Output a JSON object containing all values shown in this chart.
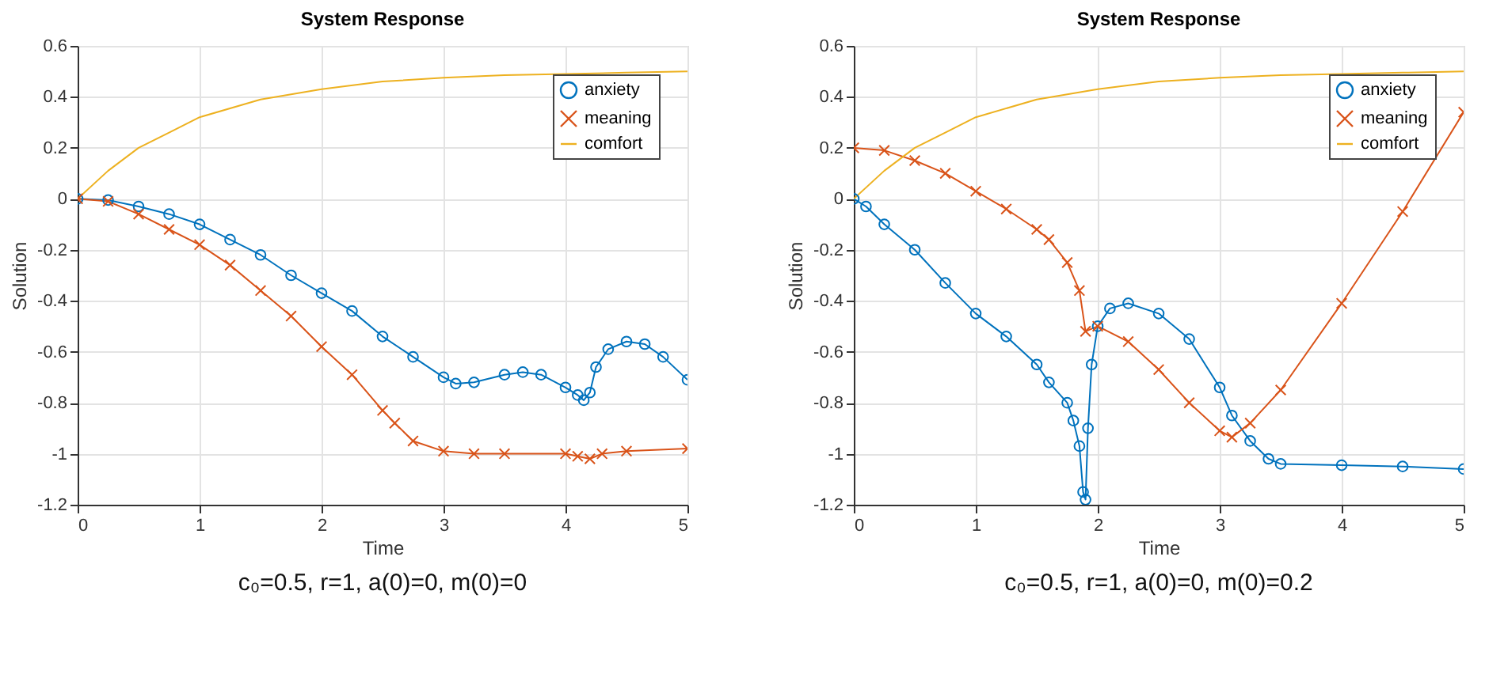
{
  "chart_data": [
    {
      "type": "line",
      "title": "System Response",
      "xlabel": "Time",
      "ylabel": "Solution",
      "xlim": [
        0,
        5
      ],
      "ylim": [
        -1.2,
        0.6
      ],
      "xticks": [
        0,
        1,
        2,
        3,
        4,
        5
      ],
      "yticks": [
        -1.2,
        -1,
        -0.8,
        -0.6,
        -0.4,
        -0.2,
        0,
        0.2,
        0.4,
        0.6
      ],
      "grid": true,
      "legend": "top right",
      "line_style": "solid",
      "annotations": [
        "c₀=0.5, r=1, a(0)=0, m(0)=0"
      ],
      "series": [
        {
          "name": "anxiety",
          "color": "#0072bd",
          "marker": "circle",
          "x": [
            0,
            0.25,
            0.5,
            0.75,
            1,
            1.25,
            1.5,
            1.75,
            2,
            2.25,
            2.5,
            2.75,
            3,
            3.1,
            3.25,
            3.5,
            3.65,
            3.8,
            4,
            4.1,
            4.15,
            4.2,
            4.25,
            4.35,
            4.5,
            4.65,
            4.8,
            5
          ],
          "values": [
            0,
            -0.005,
            -0.03,
            -0.06,
            -0.1,
            -0.16,
            -0.22,
            -0.3,
            -0.37,
            -0.44,
            -0.54,
            -0.62,
            -0.7,
            -0.725,
            -0.72,
            -0.69,
            -0.68,
            -0.69,
            -0.74,
            -0.77,
            -0.79,
            -0.76,
            -0.66,
            -0.59,
            -0.56,
            -0.57,
            -0.62,
            -0.71
          ]
        },
        {
          "name": "meaning",
          "color": "#d95319",
          "marker": "cross",
          "x": [
            0,
            0.25,
            0.5,
            0.75,
            1,
            1.25,
            1.5,
            1.75,
            2,
            2.25,
            2.5,
            2.6,
            2.75,
            3,
            3.25,
            3.5,
            4,
            4.1,
            4.2,
            4.3,
            4.5,
            5
          ],
          "values": [
            0,
            -0.01,
            -0.06,
            -0.12,
            -0.18,
            -0.26,
            -0.36,
            -0.46,
            -0.58,
            -0.69,
            -0.83,
            -0.88,
            -0.95,
            -0.99,
            -1.0,
            -1.0,
            -1.0,
            -1.01,
            -1.02,
            -1.0,
            -0.99,
            -0.98
          ]
        },
        {
          "name": "comfort",
          "color": "#edb120",
          "marker": "none",
          "x": [
            0,
            0.25,
            0.5,
            0.75,
            1,
            1.5,
            2,
            2.5,
            3,
            3.5,
            4,
            4.5,
            5
          ],
          "values": [
            0,
            0.11,
            0.2,
            0.26,
            0.32,
            0.39,
            0.43,
            0.46,
            0.475,
            0.485,
            0.49,
            0.495,
            0.5
          ]
        }
      ]
    },
    {
      "type": "line",
      "title": "System Response",
      "xlabel": "Time",
      "ylabel": "Solution",
      "xlim": [
        0,
        5
      ],
      "ylim": [
        -1.2,
        0.6
      ],
      "xticks": [
        0,
        1,
        2,
        3,
        4,
        5
      ],
      "yticks": [
        -1.2,
        -1,
        -0.8,
        -0.6,
        -0.4,
        -0.2,
        0,
        0.2,
        0.4,
        0.6
      ],
      "grid": true,
      "legend": "top right",
      "line_style": "solid",
      "annotations": [
        "c₀=0.5, r=1, a(0)=0, m(0)=0.2"
      ],
      "series": [
        {
          "name": "anxiety",
          "color": "#0072bd",
          "marker": "circle",
          "x": [
            0,
            0.1,
            0.25,
            0.5,
            0.75,
            1,
            1.25,
            1.5,
            1.6,
            1.75,
            1.8,
            1.85,
            1.88,
            1.9,
            1.92,
            1.95,
            2.0,
            2.1,
            2.25,
            2.5,
            2.75,
            3,
            3.1,
            3.25,
            3.4,
            3.5,
            4,
            4.5,
            5
          ],
          "values": [
            0,
            -0.03,
            -0.1,
            -0.2,
            -0.33,
            -0.45,
            -0.54,
            -0.65,
            -0.72,
            -0.8,
            -0.87,
            -0.97,
            -1.15,
            -1.18,
            -0.9,
            -0.65,
            -0.5,
            -0.43,
            -0.41,
            -0.45,
            -0.55,
            -0.74,
            -0.85,
            -0.95,
            -1.02,
            -1.04,
            -1.045,
            -1.05,
            -1.06
          ]
        },
        {
          "name": "meaning",
          "color": "#d95319",
          "marker": "cross",
          "x": [
            0,
            0.25,
            0.5,
            0.75,
            1,
            1.25,
            1.5,
            1.6,
            1.75,
            1.85,
            1.9,
            2,
            2.25,
            2.5,
            2.75,
            3,
            3.1,
            3.25,
            3.5,
            4,
            4.5,
            5
          ],
          "values": [
            0.2,
            0.19,
            0.15,
            0.1,
            0.03,
            -0.04,
            -0.12,
            -0.16,
            -0.25,
            -0.36,
            -0.52,
            -0.5,
            -0.56,
            -0.67,
            -0.8,
            -0.91,
            -0.935,
            -0.88,
            -0.75,
            -0.41,
            -0.05,
            0.34
          ]
        },
        {
          "name": "comfort",
          "color": "#edb120",
          "marker": "none",
          "x": [
            0,
            0.25,
            0.5,
            0.75,
            1,
            1.5,
            2,
            2.5,
            3,
            3.5,
            4,
            4.5,
            5
          ],
          "values": [
            0,
            0.11,
            0.2,
            0.26,
            0.32,
            0.39,
            0.43,
            0.46,
            0.475,
            0.485,
            0.49,
            0.495,
            0.5
          ]
        }
      ]
    }
  ]
}
